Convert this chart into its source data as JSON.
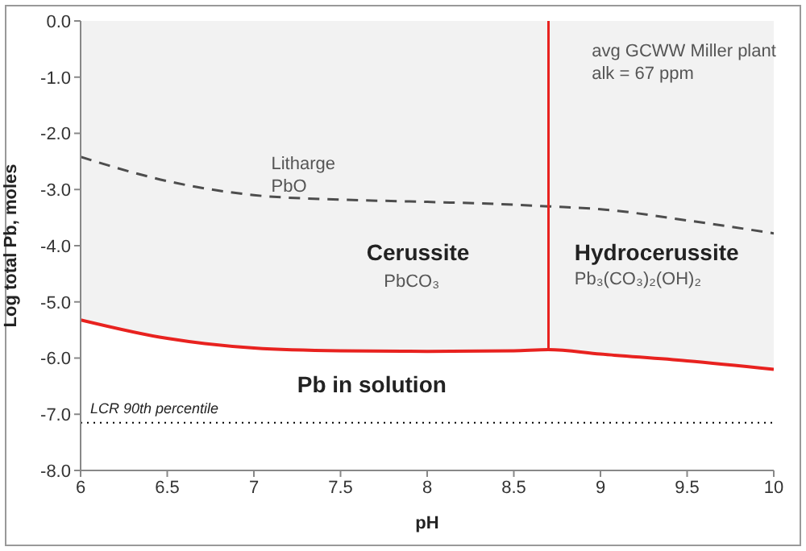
{
  "chart_data": {
    "type": "line",
    "xlabel": "pH",
    "ylabel": "Log total Pb, moles",
    "xlim": [
      6,
      10
    ],
    "xticks": [
      6,
      6.5,
      7,
      7.5,
      8,
      8.5,
      9,
      9.5,
      10
    ],
    "ylim": [
      -8,
      0
    ],
    "yticks": [
      {
        "value": -8,
        "label": "-8.0"
      },
      {
        "value": -7,
        "label": "-7.0"
      },
      {
        "value": -6,
        "label": "-6.0"
      },
      {
        "value": -5,
        "label": "-5.0"
      },
      {
        "value": -4,
        "label": "-4.0"
      },
      {
        "value": -3,
        "label": "-3.0"
      },
      {
        "value": -2,
        "label": "-2.0"
      },
      {
        "value": -1,
        "label": "-1.0"
      },
      {
        "value": 0,
        "label": "0.0"
      }
    ],
    "series": [
      {
        "type": "area",
        "color": "#e8221f",
        "x": [
          6,
          6.5,
          7,
          7.5,
          8,
          8.5,
          8.7,
          9,
          9.5,
          10
        ],
        "values": [
          -5.32,
          -5.65,
          -5.82,
          -5.87,
          -5.88,
          -5.87,
          -5.85,
          -5.93,
          -6.05,
          -6.2
        ]
      },
      {
        "color": "#4d4d4d",
        "line_style": "dashed",
        "x": [
          6,
          6.5,
          7,
          7.5,
          8,
          8.5,
          8.7,
          9,
          9.5,
          10
        ],
        "values": [
          -2.42,
          -2.85,
          -3.1,
          -3.18,
          -3.22,
          -3.27,
          -3.3,
          -3.35,
          -3.55,
          -3.78
        ]
      },
      {
        "color": "#e8221f",
        "x": [
          8.7,
          8.7
        ],
        "values": [
          -5.85,
          0
        ]
      }
    ],
    "ref_lines": [
      {
        "axis": "y",
        "value": -7.15,
        "label": "LCR 90th percentile",
        "color": "#000000",
        "line_style": "dotted"
      }
    ],
    "annotations": [
      "Litharge",
      "PbO",
      "Cerussite",
      "PbCO₃",
      "Hydrocerussite",
      "Pb₃(CO₃)₂(OH)₂",
      "Pb in solution",
      "avg GCWW Miller plant",
      "alk = 67 ppm"
    ]
  }
}
